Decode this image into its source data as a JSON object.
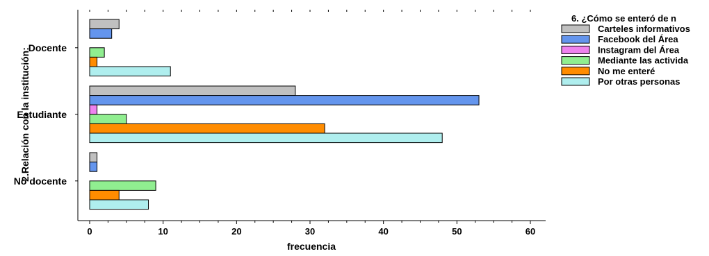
{
  "chart_data": {
    "type": "bar",
    "orientation": "horizontal",
    "categories": [
      "Docente",
      "Estudiante",
      "No docente"
    ],
    "xlabel": "frecuencia",
    "ylabel": "2.Relación con la institución:",
    "xlim": [
      0,
      60
    ],
    "x_ticks": [
      "0",
      "10",
      "20",
      "30",
      "40",
      "50",
      "60"
    ],
    "grid": false,
    "legend": {
      "title": "6. ¿Cómo se enteró de n",
      "position": "right"
    },
    "series": [
      {
        "name": "Carteles informativos",
        "color": "#c0c0c0",
        "values": [
          4,
          28,
          1
        ]
      },
      {
        "name": "Facebook del Área",
        "color": "#6495ed",
        "values": [
          3,
          53,
          1
        ]
      },
      {
        "name": "Instagram del Área",
        "color": "#ee82ee",
        "values": [
          0,
          1,
          0
        ]
      },
      {
        "name": "Mediante las activida",
        "color": "#90ee90",
        "values": [
          2,
          5,
          9
        ]
      },
      {
        "name": "No me enteré",
        "color": "#ff8c00",
        "values": [
          1,
          32,
          4
        ]
      },
      {
        "name": "Por otras personas",
        "color": "#afeeee",
        "values": [
          11,
          48,
          8
        ]
      }
    ]
  }
}
